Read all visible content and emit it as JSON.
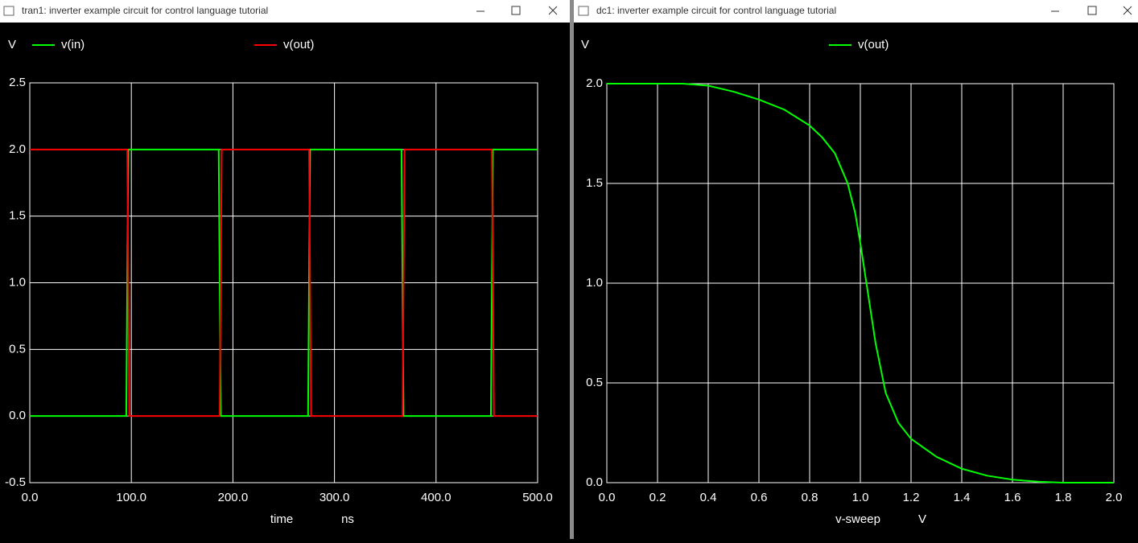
{
  "windows": [
    {
      "title": "tran1: inverter example circuit for control language tutorial"
    },
    {
      "title": "dc1: inverter example circuit for control language tutorial"
    }
  ],
  "chart_data": [
    {
      "type": "line",
      "ylabel": "V",
      "xlabel": "time",
      "xunit": "ns",
      "grid": true,
      "xlim": [
        0,
        500
      ],
      "ylim": [
        -0.5,
        2.5
      ],
      "xticks": [
        {
          "value": 0,
          "label": "0.0"
        },
        {
          "value": 100,
          "label": "100.0"
        },
        {
          "value": 200,
          "label": "200.0"
        },
        {
          "value": 300,
          "label": "300.0"
        },
        {
          "value": 400,
          "label": "400.0"
        },
        {
          "value": 500,
          "label": "500.0"
        }
      ],
      "yticks": [
        -0.5,
        {
          "value": 0,
          "label": "0.0"
        },
        0.5,
        {
          "value": 1,
          "label": "1.0"
        },
        1.5,
        {
          "value": 2,
          "label": "2.0"
        },
        2.5
      ],
      "series": [
        {
          "name": "v(in)",
          "color": "#00ff00",
          "x": [
            0,
            95,
            97,
            186,
            188,
            274,
            276,
            366,
            368,
            454,
            456,
            500
          ],
          "values": [
            0,
            0,
            2,
            2,
            0,
            0,
            2,
            2,
            0,
            0,
            2,
            2
          ]
        },
        {
          "name": "v(out)",
          "color": "#ff0000",
          "x": [
            0,
            96,
            98,
            187,
            189,
            275,
            277,
            367,
            369,
            455,
            457,
            500
          ],
          "values": [
            2,
            2,
            0,
            0,
            2,
            2,
            0,
            0,
            2,
            2,
            0,
            0
          ]
        }
      ]
    },
    {
      "type": "line",
      "ylabel": "V",
      "xlabel": "v-sweep",
      "xunit": "V",
      "grid": true,
      "xlim": [
        0,
        2
      ],
      "ylim": [
        0,
        2
      ],
      "xticks": [
        {
          "value": 0,
          "label": "0.0"
        },
        0.2,
        0.4,
        0.6,
        0.8,
        {
          "value": 1,
          "label": "1.0"
        },
        1.2,
        1.4,
        1.6,
        1.8,
        {
          "value": 2,
          "label": "2.0"
        }
      ],
      "yticks": [
        {
          "value": 0,
          "label": "0.0"
        },
        0.5,
        {
          "value": 1,
          "label": "1.0"
        },
        1.5,
        {
          "value": 2,
          "label": "2.0"
        }
      ],
      "series": [
        {
          "name": "v(out)",
          "color": "#00ff00",
          "x": [
            0,
            0.2,
            0.3,
            0.4,
            0.5,
            0.6,
            0.7,
            0.8,
            0.85,
            0.9,
            0.95,
            0.98,
            1.0,
            1.03,
            1.06,
            1.1,
            1.15,
            1.2,
            1.3,
            1.4,
            1.5,
            1.6,
            1.7,
            1.8,
            2.0
          ],
          "values": [
            2,
            2,
            2,
            1.99,
            1.96,
            1.92,
            1.87,
            1.79,
            1.73,
            1.65,
            1.5,
            1.35,
            1.2,
            0.95,
            0.7,
            0.45,
            0.3,
            0.22,
            0.13,
            0.07,
            0.035,
            0.015,
            0.005,
            0,
            0
          ]
        }
      ]
    }
  ]
}
